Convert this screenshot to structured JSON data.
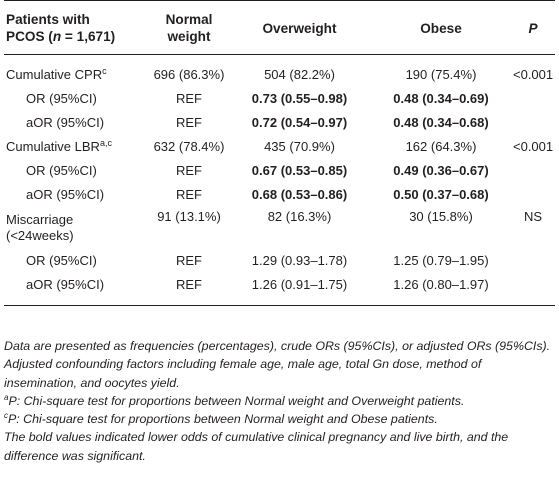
{
  "header": {
    "col0_line1": "Patients with",
    "col0_line2_a": "PCOS (",
    "col0_line2_n": "n",
    "col0_line2_b": " = 1,671)",
    "col1_line1": "Normal",
    "col1_line2": "weight",
    "col2": "Overweight",
    "col3": "Obese",
    "col4": "P"
  },
  "rows": [
    {
      "label": "Cumulative CPR",
      "sup": "c",
      "normal": "696 (86.3%)",
      "over": "504 (82.2%)",
      "obese": "190 (75.4%)",
      "p": "<0.001"
    },
    {
      "label": "OR (95%CI)",
      "normal": "REF",
      "over": "0.73 (0.55–0.98)",
      "obese": "0.48 (0.34–0.69)",
      "p": ""
    },
    {
      "label": "aOR (95%CI)",
      "normal": "REF",
      "over": "0.72 (0.54–0.97)",
      "obese": "0.48 (0.34–0.68)",
      "p": ""
    },
    {
      "label": "Cumulative LBR",
      "sup": "a,c",
      "normal": "632 (78.4%)",
      "over": "435 (70.9%)",
      "obese": "162 (64.3%)",
      "p": "<0.001"
    },
    {
      "label": "OR (95%CI)",
      "normal": "REF",
      "over": "0.67 (0.53–0.85)",
      "obese": "0.49 (0.36–0.67)",
      "p": ""
    },
    {
      "label": "aOR (95%CI)",
      "normal": "REF",
      "over": "0.68 (0.53–0.86)",
      "obese": "0.50 (0.37–0.68)",
      "p": ""
    },
    {
      "label_line1": "Miscarriage",
      "label_line2": "(<24weeks)",
      "normal": "91 (13.1%)",
      "over": "82 (16.3%)",
      "obese": "30 (15.8%)",
      "p": "NS"
    },
    {
      "label": "OR (95%CI)",
      "normal": "REF",
      "over": "1.29 (0.93–1.78)",
      "obese": "1.25 (0.79–1.95)",
      "p": ""
    },
    {
      "label": "aOR (95%CI)",
      "normal": "REF",
      "over": "1.26 (0.91–1.75)",
      "obese": "1.26 (0.80–1.97)",
      "p": ""
    }
  ],
  "notes": {
    "main": "Data are presented as frequencies (percentages), crude ORs (95%CIs), or adjusted ORs (95%CIs). Adjusted confounding factors including female age, male age, total Gn dose, method of insemination, and oocytes yield.",
    "a_sup": "a",
    "a_text": "P: Chi-square test for proportions between Normal weight and Overweight patients.",
    "c_sup": "c",
    "c_text": "P: Chi-square test for proportions between Normal weight and Obese patients.",
    "bold_note": "The bold values indicated lower odds of cumulative clinical pregnancy and live birth, and the difference was significant."
  }
}
